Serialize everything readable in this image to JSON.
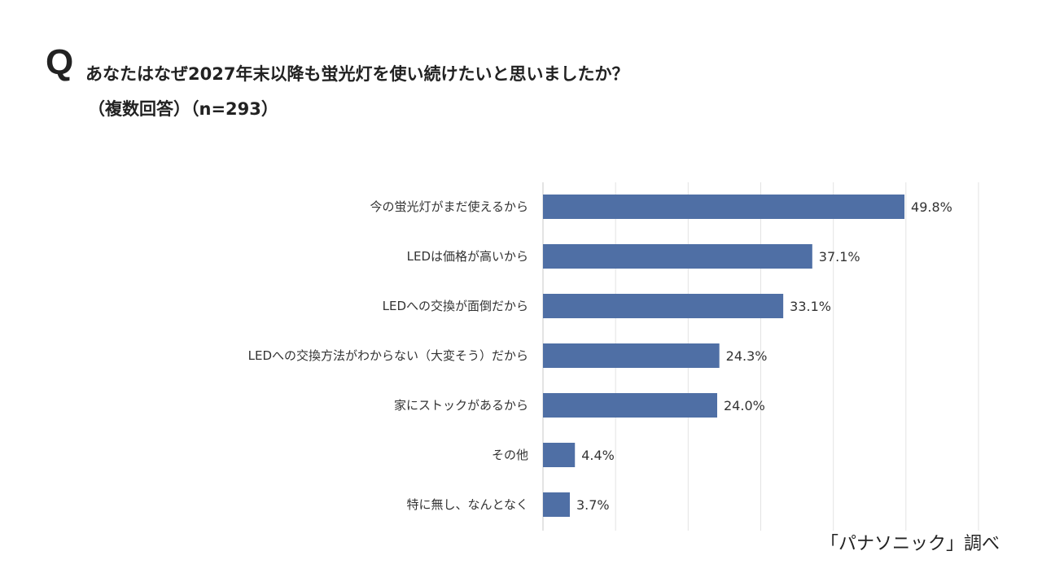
{
  "header": {
    "q_mark": "Q",
    "question": "あなたはなぜ2027年末以降も蛍光灯を使い続けたいと思いましたか？",
    "subtitle": "（複数回答）（n=293）"
  },
  "chart_data": {
    "type": "bar",
    "orientation": "horizontal",
    "categories": [
      "今の蛍光灯がまだ使えるから",
      "LEDは価格が高いから",
      "LEDへの交換が面倒だから",
      "LEDへの交換方法がわからない（大変そう）だから",
      "家にストックがあるから",
      "その他",
      "特に無し、なんとなく"
    ],
    "values": [
      49.8,
      37.1,
      33.1,
      24.3,
      24.0,
      4.4,
      3.7
    ],
    "labels": [
      "49.8%",
      "37.1%",
      "33.1%",
      "24.3%",
      "24.0%",
      "4.4%",
      "3.7%"
    ],
    "xlim": [
      0,
      60
    ],
    "grid": true,
    "unit": "%",
    "bar_color": "#4f6fa5",
    "grid_color": "#e3e3e3"
  },
  "footer": {
    "source": "「パナソニック」調べ"
  }
}
